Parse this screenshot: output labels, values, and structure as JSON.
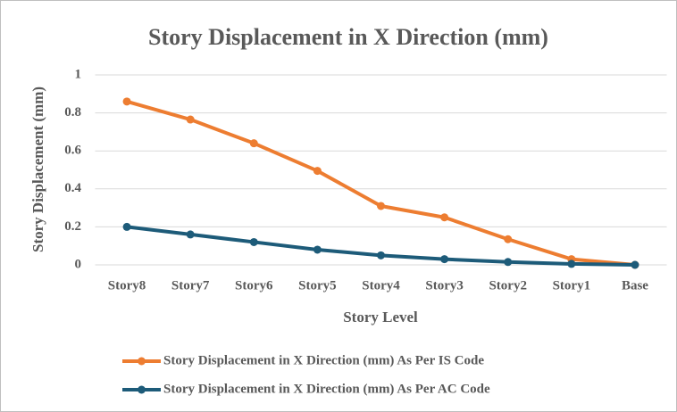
{
  "chart_data": {
    "type": "line",
    "title": "Story Displacement in X Direction (mm)",
    "x_label": "Story Level",
    "y_label": "Story Displacement (mm)",
    "categories": [
      "Story8",
      "Story7",
      "Story6",
      "Story5",
      "Story4",
      "Story3",
      "Story2",
      "Story1",
      "Base"
    ],
    "series": [
      {
        "name": "Story Displacement in X Direction (mm) As Per IS Code",
        "color": "#ed7d31",
        "values": [
          0.86,
          0.765,
          0.64,
          0.495,
          0.31,
          0.25,
          0.135,
          0.03,
          0
        ]
      },
      {
        "name": "Story Displacement in X Direction (mm) As Per AC Code",
        "color": "#1d5b79",
        "values": [
          0.2,
          0.16,
          0.12,
          0.08,
          0.05,
          0.03,
          0.015,
          0.005,
          0
        ]
      }
    ],
    "ylim": [
      0,
      1
    ],
    "yticks": [
      0,
      0.2,
      0.4,
      0.6,
      0.8,
      1
    ],
    "grid": true,
    "legend": "bottom"
  }
}
